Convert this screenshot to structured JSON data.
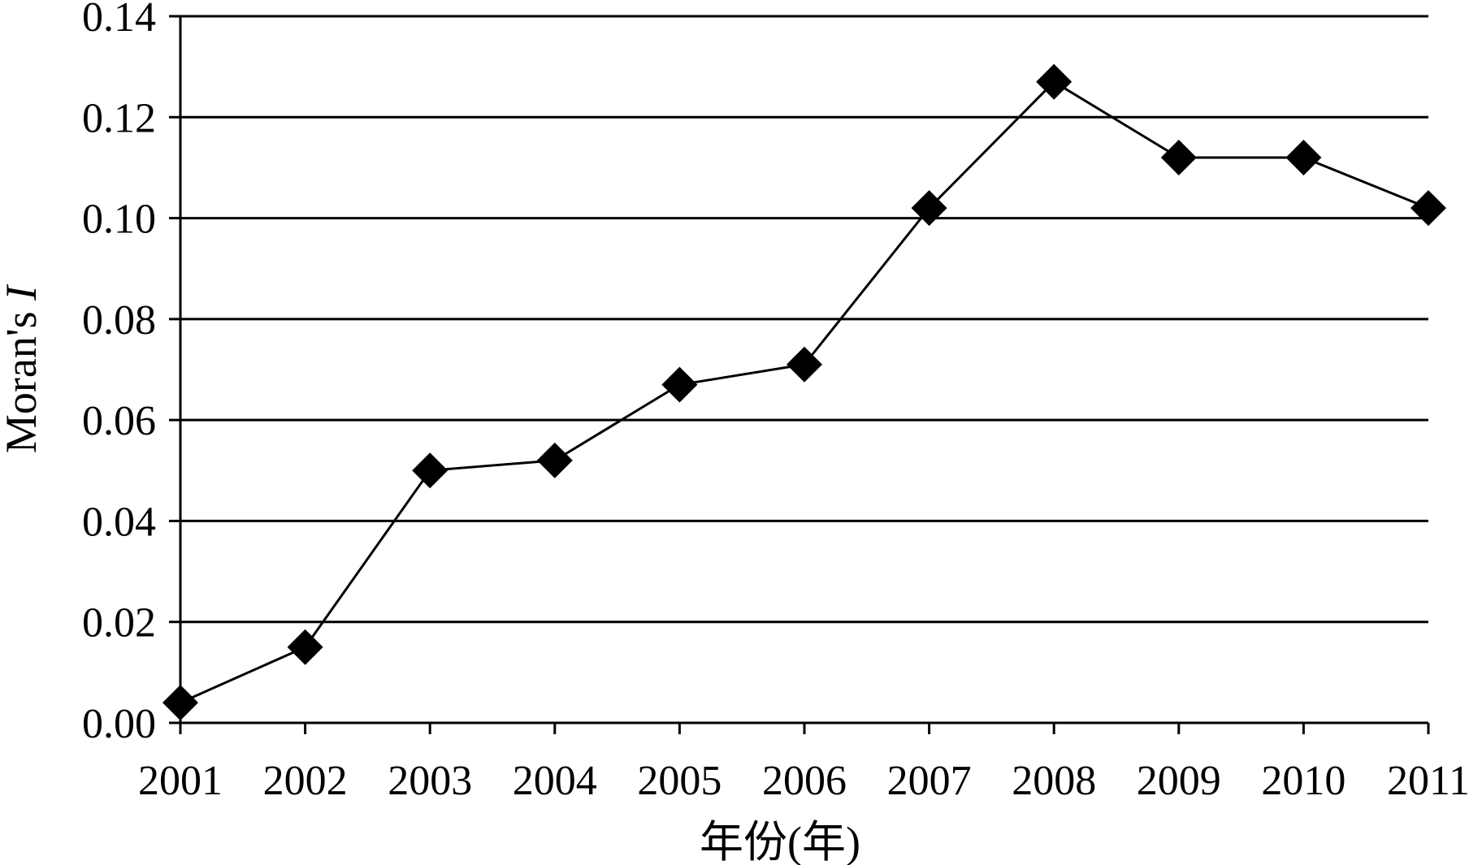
{
  "chart_data": {
    "type": "line",
    "x": [
      "2001",
      "2002",
      "2003",
      "2004",
      "2005",
      "2006",
      "2007",
      "2008",
      "2009",
      "2010",
      "2011"
    ],
    "series": [
      {
        "values": [
          0.004,
          0.015,
          0.05,
          0.052,
          0.067,
          0.071,
          0.102,
          0.127,
          0.112,
          0.112,
          0.102
        ],
        "marker": "diamond",
        "color": "#000000"
      }
    ],
    "xlabel": "年份(年)",
    "ylabel_main": "Moran's ",
    "ylabel_italic": "I",
    "ylim": [
      0,
      0.14
    ],
    "yticks": [
      "0.00",
      "0.02",
      "0.04",
      "0.06",
      "0.08",
      "0.10",
      "0.12",
      "0.14"
    ],
    "grid": "horizontal",
    "legend": "none"
  }
}
